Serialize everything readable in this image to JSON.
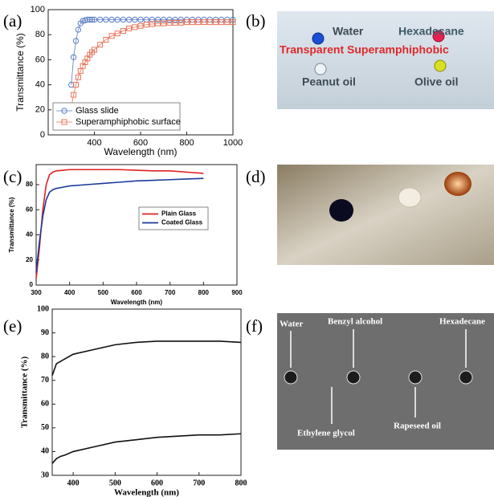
{
  "panel_labels": [
    "(a)",
    "(b)",
    "(c)",
    "(d)",
    "(e)",
    "(f)"
  ],
  "chart_data": [
    {
      "type": "line",
      "xlabel": "Wavelength (nm)",
      "ylabel": "Transmittance (%)",
      "x": [
        300,
        310,
        320,
        330,
        340,
        350,
        360,
        370,
        380,
        390,
        400,
        425,
        450,
        475,
        500,
        525,
        550,
        575,
        600,
        625,
        650,
        675,
        700,
        725,
        750,
        775,
        800,
        825,
        850,
        875,
        900,
        925,
        950,
        975,
        1000
      ],
      "series": [
        {
          "name": "Glass slide",
          "color": "#5b7fc4",
          "marker": "circle",
          "values": [
            40,
            62,
            75,
            84,
            89,
            91,
            91.5,
            92,
            92,
            92,
            92,
            92,
            92,
            92,
            92,
            92,
            92,
            92,
            92,
            92,
            92,
            92,
            92,
            92,
            92,
            92,
            92,
            92,
            92,
            92,
            92,
            92,
            92,
            92,
            92
          ]
        },
        {
          "name": "Superamphiphobic surface",
          "color": "#e8745a",
          "marker": "square",
          "values": [
            22,
            32,
            40,
            46,
            51,
            55,
            58,
            61,
            64,
            66,
            68,
            72,
            76,
            79,
            81,
            83,
            85,
            86,
            87,
            88,
            88.5,
            89,
            89,
            89.5,
            89.5,
            89.5,
            90,
            90,
            90,
            90,
            90,
            90,
            90,
            90,
            90
          ]
        }
      ],
      "xlim": [
        200,
        1000
      ],
      "xticks": [
        400,
        600,
        800,
        1000
      ],
      "ylim": [
        0,
        100
      ],
      "yticks": [
        0,
        20,
        40,
        60,
        80,
        100
      ],
      "legend": "lower left"
    },
    {
      "type": "line",
      "xlabel": "Wavelength (nm)",
      "ylabel": "Transmittance (%)",
      "x": [
        300,
        310,
        320,
        330,
        340,
        350,
        360,
        380,
        400,
        450,
        500,
        550,
        600,
        650,
        700,
        750,
        800
      ],
      "series": [
        {
          "name": "Plain Glass",
          "color": "#e02020",
          "values": [
            5,
            30,
            60,
            80,
            88,
            90,
            91,
            91.5,
            92,
            92,
            92,
            92,
            91.5,
            91,
            91,
            90,
            89
          ]
        },
        {
          "name": "Coated Glass",
          "color": "#1a3a9c",
          "values": [
            10,
            35,
            55,
            68,
            74,
            76,
            77,
            78,
            79,
            80,
            81,
            82,
            83,
            83.5,
            84,
            84.5,
            85
          ]
        }
      ],
      "xlim": [
        300,
        900
      ],
      "xticks": [
        300,
        400,
        500,
        600,
        700,
        800,
        900
      ],
      "ylim": [
        0,
        96
      ],
      "yticks": [
        0,
        20,
        40,
        60,
        80
      ],
      "legend": "center right"
    },
    {
      "type": "line",
      "xlabel": "Wavelength (nm)",
      "ylabel": "Transmittance (%)",
      "x": [
        350,
        360,
        370,
        380,
        400,
        450,
        500,
        550,
        600,
        650,
        700,
        750,
        800
      ],
      "series": [
        {
          "color": "#111111",
          "values": [
            72,
            77,
            78,
            79,
            81,
            83,
            85,
            86,
            86.5,
            86.5,
            86.5,
            86.5,
            86
          ]
        },
        {
          "color": "#111111",
          "values": [
            35,
            37,
            38,
            38.5,
            40,
            42,
            44,
            45,
            46,
            46.5,
            47,
            47,
            47.5
          ]
        }
      ],
      "xlim": [
        350,
        800
      ],
      "xticks": [
        400,
        500,
        600,
        700,
        800
      ],
      "ylim": [
        30,
        100
      ],
      "yticks": [
        30,
        40,
        50,
        60,
        70,
        80,
        90,
        100
      ]
    }
  ],
  "photo_b": {
    "labels": [
      "Water",
      "Hexadecane",
      "Transparent Superamphiphobic",
      "Peanut oil",
      "Olive oil"
    ]
  },
  "photo_f": {
    "labels": [
      "Water",
      "Benzyl alcohol",
      "Hexadecane",
      "Ethylene glycol",
      "Rapeseed oil"
    ]
  }
}
